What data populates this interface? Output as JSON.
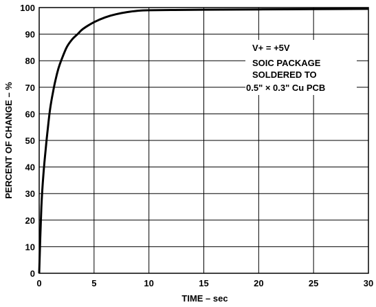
{
  "chart_data": {
    "type": "line",
    "xlabel": "TIME – sec",
    "ylabel": "PERCENT OF CHANGE – %",
    "xlim": [
      0,
      30
    ],
    "ylim": [
      0,
      100
    ],
    "x_ticks": [
      "0",
      "5",
      "10",
      "15",
      "20",
      "25",
      "30"
    ],
    "y_ticks": [
      "0",
      "10",
      "20",
      "30",
      "40",
      "50",
      "60",
      "70",
      "80",
      "90",
      "100"
    ],
    "grid": true,
    "series": [
      {
        "x": [
          0,
          0.2,
          0.4,
          0.6,
          0.8,
          1,
          1.25,
          1.5,
          1.75,
          2,
          2.5,
          3,
          3.5,
          4,
          5,
          6,
          7,
          8,
          9,
          10,
          12,
          15,
          20,
          25,
          30
        ],
        "y": [
          0,
          25,
          38,
          47,
          55,
          62,
          68,
          73,
          77,
          80,
          85,
          88,
          90,
          92,
          94.5,
          96.3,
          97.5,
          98.3,
          98.8,
          99,
          99.1,
          99.2,
          99.3,
          99.4,
          99.5
        ]
      }
    ],
    "annotations": [
      "V+ = +5V",
      "SOIC PACKAGE",
      "SOLDERED TO",
      "0.5\" × 0.3\" Cu PCB"
    ]
  }
}
